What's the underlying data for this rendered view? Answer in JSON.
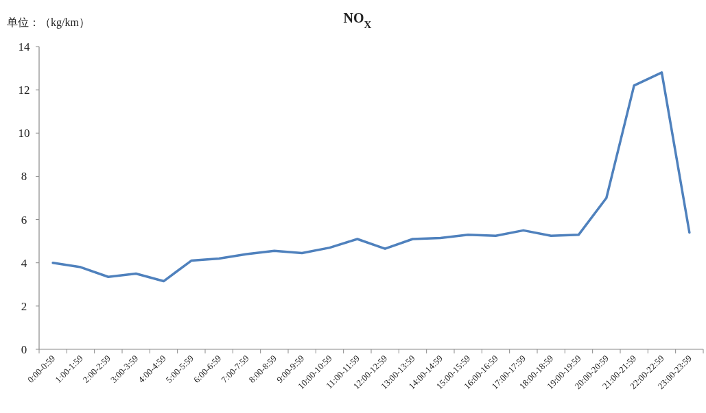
{
  "chart_data": {
    "type": "line",
    "title": "NO$_{X}$",
    "ylabel": "单位：（kg/km）",
    "categories": [
      "0:00-0:59",
      "1:00-1:59",
      "2:00-2:59",
      "3:00-3:59",
      "4:00-4:59",
      "5:00-5:59",
      "6:00-6:59",
      "7:00-7:59",
      "8:00-8:59",
      "9:00-9:59",
      "10:00-10:59",
      "11:00-11:59",
      "12:00-12:59",
      "13:00-13:59",
      "14:00-14:59",
      "15:00-15:59",
      "16:00-16:59",
      "17:00-17:59",
      "18:00-18:59",
      "19:00-19:59",
      "20:00-20:59",
      "21:00-21:59",
      "22:00-22:59",
      "23:00-23:59"
    ],
    "series": [
      {
        "color": "#4f81bd",
        "values": [
          4.0,
          3.8,
          3.35,
          3.5,
          3.15,
          4.1,
          4.2,
          4.4,
          4.55,
          4.45,
          4.7,
          5.1,
          4.65,
          5.1,
          5.15,
          5.3,
          5.25,
          5.5,
          5.25,
          5.3,
          7.0,
          12.2,
          12.8,
          5.4
        ]
      }
    ],
    "ylim": [
      0,
      14
    ],
    "yticks": [
      0,
      2,
      4,
      6,
      8,
      10,
      12,
      14
    ]
  }
}
